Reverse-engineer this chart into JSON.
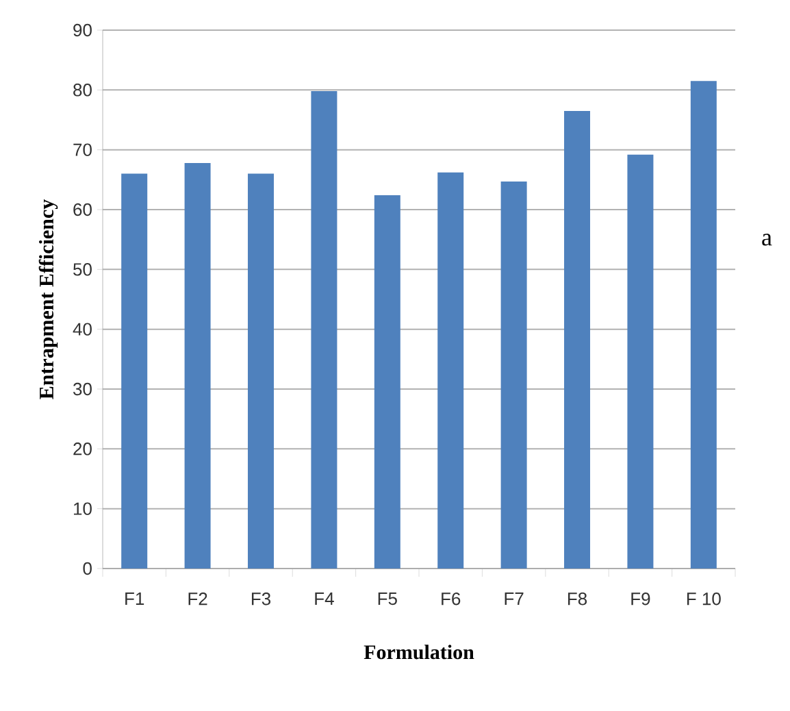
{
  "chart_data": {
    "type": "bar",
    "xlabel": "Formulation",
    "ylabel": "Entrapment Efficiency",
    "categories": [
      "F1",
      "F2",
      "F3",
      "F4",
      "F5",
      "F6",
      "F7",
      "F8",
      "F9",
      "F 10"
    ],
    "values": [
      66,
      67.8,
      66,
      79.8,
      62.4,
      66.2,
      64.7,
      76.5,
      69.2,
      81.5
    ],
    "color": "#4f81bd",
    "ylim": [
      0,
      90
    ],
    "yticks": [
      0,
      10,
      20,
      30,
      40,
      50,
      60,
      70,
      80,
      90
    ],
    "grid": "y",
    "annotations": [
      "a"
    ]
  }
}
